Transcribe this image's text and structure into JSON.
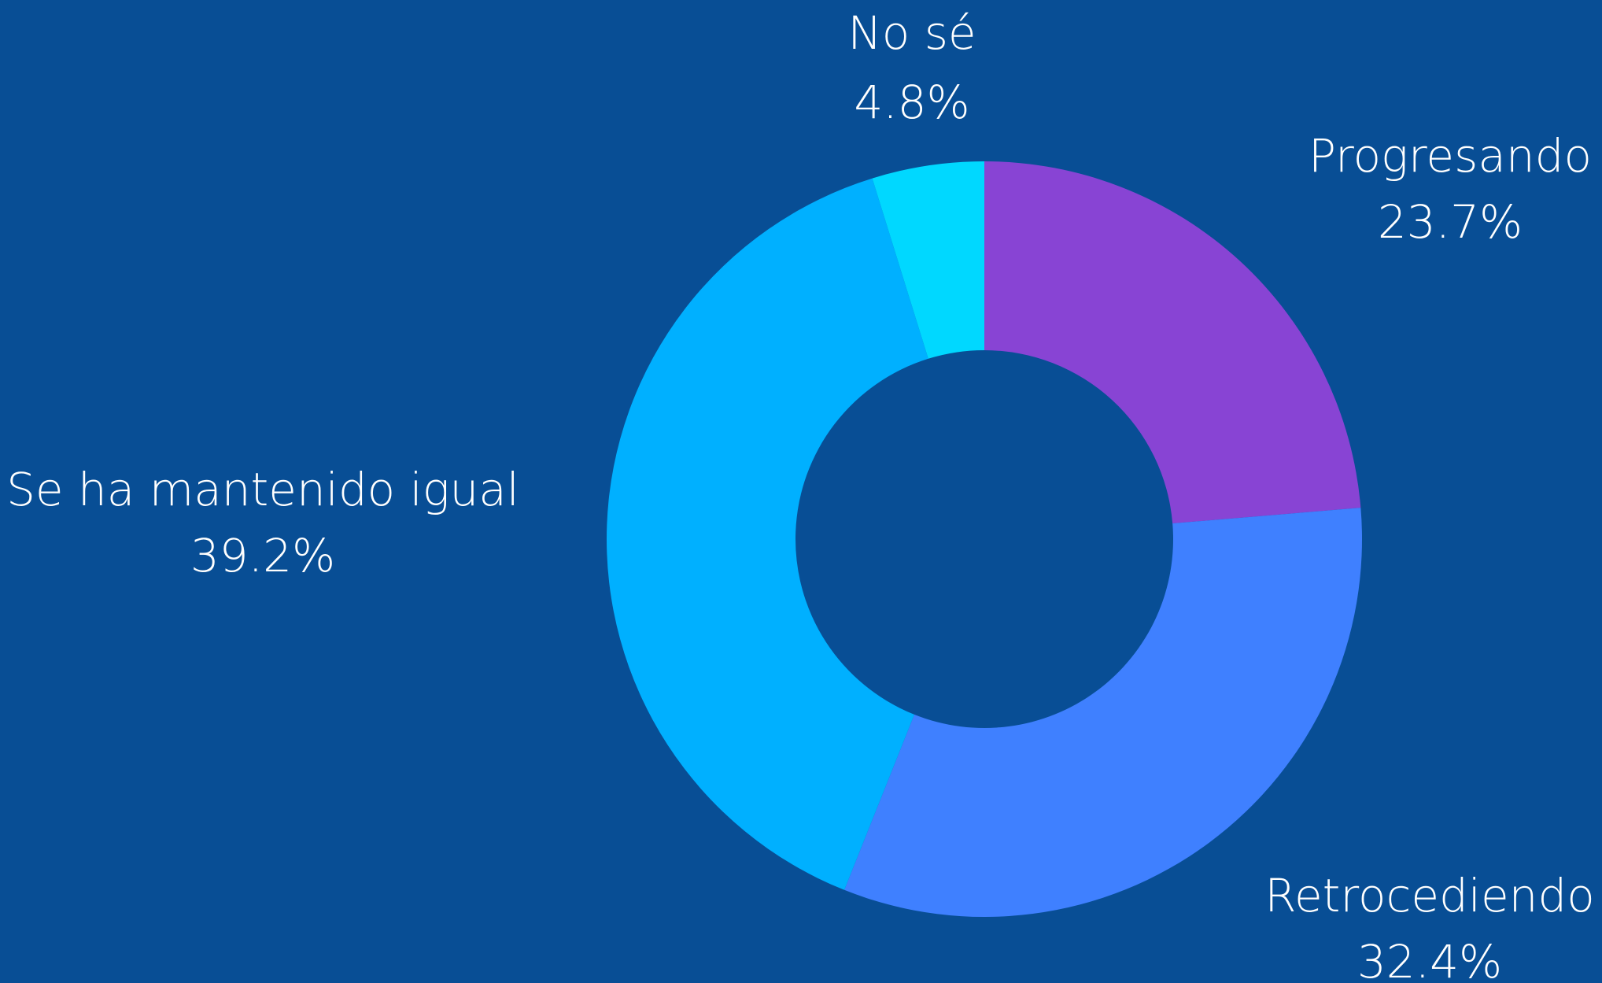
{
  "chart_data": {
    "type": "pie",
    "style": "donut",
    "title": "",
    "categories": [
      "Progresando",
      "Retrocediendo",
      "Se ha mantenido igual",
      "No sé"
    ],
    "values": [
      23.7,
      32.4,
      39.2,
      4.8
    ],
    "value_labels": [
      "23.7%",
      "32.4%",
      "39.2%",
      "4.8%"
    ],
    "unit": "%",
    "colors": [
      "#8844d4",
      "#3f80ff",
      "#00b0ff",
      "#00d8ff"
    ],
    "start_angle_deg": 0,
    "direction": "clockwise",
    "legend": "none",
    "background": "#084e95"
  }
}
